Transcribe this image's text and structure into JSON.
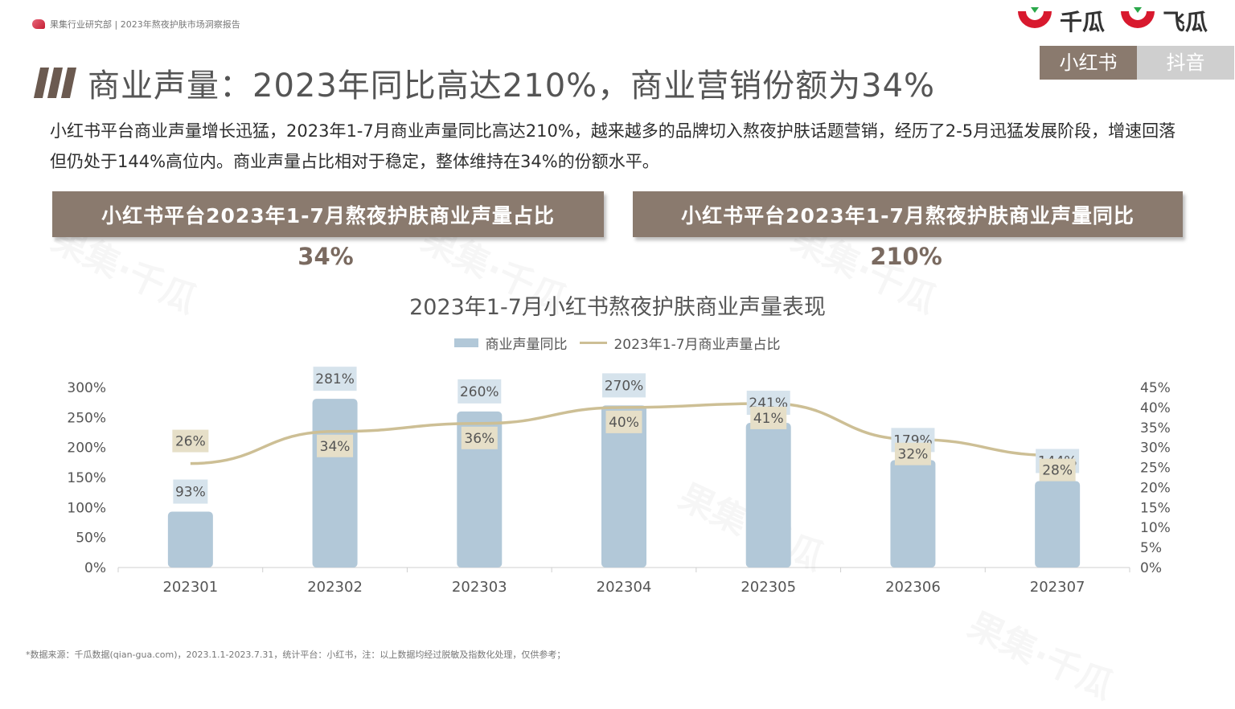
{
  "header": {
    "breadcrumb": "果集行业研究部 | 2023年熬夜护肤市场洞察报告",
    "logos": [
      "千瓜",
      "飞瓜"
    ],
    "tabs": [
      {
        "label": "小红书",
        "active": true
      },
      {
        "label": "抖音",
        "active": false
      }
    ]
  },
  "slide": {
    "title": "商业声量：2023年同比高达210%，商业营销份额为34%",
    "description": "小红书平台商业声量增长迅猛，2023年1-7月商业声量同比高达210%，越来越多的品牌切入熬夜护肤话题营销，经历了2-5月迅猛发展阶段，增速回落但仍处于144%高位内。商业声量占比相对于稳定，整体维持在34%的份额水平。"
  },
  "kpis": [
    {
      "label": "小红书平台2023年1-7月熬夜护肤商业声量占比",
      "value": "34%"
    },
    {
      "label": "小红书平台2023年1-7月熬夜护肤商业声量同比",
      "value": "210%"
    }
  ],
  "chart_data": {
    "type": "bar",
    "title": "2023年1-7月小红书熬夜护肤商业声量表现",
    "categories": [
      "202301",
      "202302",
      "202303",
      "202304",
      "202305",
      "202306",
      "202307"
    ],
    "series": [
      {
        "name": "商业声量同比",
        "type": "bar",
        "axis": "left",
        "values": [
          93,
          281,
          260,
          270,
          241,
          179,
          144
        ],
        "labels": [
          "93%",
          "281%",
          "260%",
          "270%",
          "241%",
          "179%",
          "144%"
        ]
      },
      {
        "name": "2023年1-7月商业声量占比",
        "type": "line",
        "axis": "right",
        "values": [
          26,
          34,
          36,
          40,
          41,
          32,
          28
        ],
        "labels": [
          "26%",
          "34%",
          "36%",
          "40%",
          "41%",
          "32%",
          "28%"
        ]
      }
    ],
    "y_left": {
      "min": 0,
      "max": 300,
      "ticks": [
        "0%",
        "50%",
        "100%",
        "150%",
        "200%",
        "250%",
        "300%"
      ]
    },
    "y_right": {
      "min": 0,
      "max": 45,
      "ticks": [
        "0%",
        "5%",
        "10%",
        "15%",
        "20%",
        "25%",
        "30%",
        "35%",
        "40%",
        "45%"
      ]
    },
    "legend": "top-center",
    "grid": false,
    "colors": {
      "bar": "#b2c8d8",
      "line": "#cdbf95",
      "label_bg_bar": "#d6e3ec",
      "label_bg_line": "#e6dfc8"
    }
  },
  "footer": {
    "source": "*数据来源：千瓜数据(qian-gua.com)，2023.1.1-2023.7.31，统计平台：小红书，注：以上数据均经过脱敏及指数化处理，仅供参考；"
  }
}
